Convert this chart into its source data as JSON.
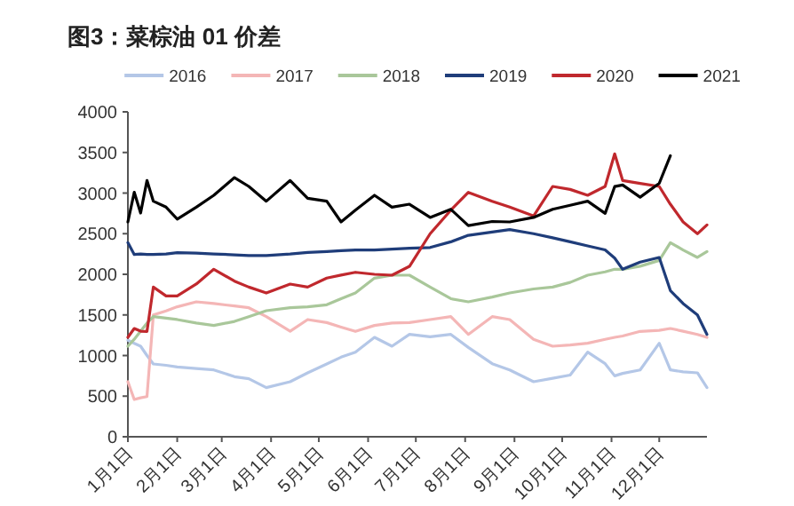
{
  "chart_data": {
    "type": "line",
    "title": "图3：菜棕油 01 价差",
    "legend": "top",
    "x": [
      "--01-01",
      "--01-05",
      "--01-09",
      "--01-13",
      "--01-17",
      "--01-25",
      "--02-01",
      "--02-13",
      "--02-24",
      "--03-09",
      "--03-18",
      "--03-29",
      "--04-13",
      "--04-24",
      "--05-06",
      "--05-15",
      "--05-24",
      "--06-05",
      "--06-16",
      "--06-27",
      "--07-10",
      "--07-23",
      "--08-03",
      "--08-18",
      "--08-29",
      "--09-13",
      "--09-25",
      "--10-06",
      "--10-17",
      "--10-28",
      "--11-03",
      "--11-08",
      "--11-19",
      "--12-01",
      "--12-08",
      "--12-16",
      "--12-25",
      "--12-31"
    ],
    "xlim": [
      "--01-01",
      "--12-31"
    ],
    "xticks": [
      {
        "value": "--01-01",
        "label": "1月1日"
      },
      {
        "value": "--02-01",
        "label": "2月1日"
      },
      {
        "value": "--03-01",
        "label": "3月1日"
      },
      {
        "value": "--04-01",
        "label": "4月1日"
      },
      {
        "value": "--05-01",
        "label": "5月1日"
      },
      {
        "value": "--06-01",
        "label": "6月1日"
      },
      {
        "value": "--07-01",
        "label": "7月1日"
      },
      {
        "value": "--08-01",
        "label": "8月1日"
      },
      {
        "value": "--09-01",
        "label": "9月1日"
      },
      {
        "value": "--10-01",
        "label": "10月1日"
      },
      {
        "value": "--11-01",
        "label": "11月1日"
      },
      {
        "value": "--12-01",
        "label": "12月1日"
      }
    ],
    "ylim": [
      0,
      4000
    ],
    "yticks": [
      0,
      500,
      1000,
      1500,
      2000,
      2500,
      3000,
      3500,
      4000
    ],
    "series": [
      {
        "name": "2016",
        "color": "#b4c7e7",
        "values": [
          1188,
          1150,
          1115,
          1000,
          896,
          880,
          860,
          840,
          823,
          740,
          714,
          605,
          678,
          787,
          896,
          980,
          1042,
          1224,
          1115,
          1260,
          1230,
          1260,
          1100,
          900,
          823,
          678,
          720,
          760,
          1042,
          900,
          750,
          780,
          823,
          1151,
          823,
          800,
          787,
          605
        ]
      },
      {
        "name": "2017",
        "color": "#f4b6b6",
        "values": [
          678,
          459,
          480,
          495,
          1500,
          1550,
          1600,
          1661,
          1640,
          1610,
          1588,
          1479,
          1300,
          1443,
          1406,
          1350,
          1297,
          1370,
          1400,
          1406,
          1443,
          1479,
          1260,
          1479,
          1443,
          1200,
          1115,
          1130,
          1151,
          1200,
          1224,
          1240,
          1297,
          1310,
          1333,
          1300,
          1260,
          1224
        ]
      },
      {
        "name": "2018",
        "color": "#a9c79a",
        "values": [
          1115,
          1200,
          1300,
          1400,
          1479,
          1460,
          1443,
          1400,
          1370,
          1420,
          1479,
          1552,
          1588,
          1600,
          1625,
          1700,
          1770,
          1953,
          1989,
          1989,
          1843,
          1700,
          1661,
          1720,
          1770,
          1820,
          1843,
          1900,
          1989,
          2030,
          2062,
          2062,
          2100,
          2171,
          2390,
          2300,
          2208,
          2280
        ]
      },
      {
        "name": "2019",
        "color": "#1f3d7a",
        "values": [
          2390,
          2244,
          2250,
          2244,
          2244,
          2250,
          2266,
          2260,
          2250,
          2240,
          2230,
          2230,
          2250,
          2270,
          2280,
          2290,
          2300,
          2300,
          2310,
          2320,
          2330,
          2400,
          2480,
          2520,
          2550,
          2500,
          2450,
          2400,
          2350,
          2300,
          2200,
          2062,
          2150,
          2207,
          1800,
          1640,
          1500,
          1260
        ]
      },
      {
        "name": "2020",
        "color": "#c0282d",
        "values": [
          1224,
          1333,
          1300,
          1297,
          1843,
          1734,
          1734,
          1880,
          2062,
          1916,
          1843,
          1770,
          1880,
          1843,
          1953,
          1990,
          2025,
          2000,
          1989,
          2098,
          2500,
          2790,
          3009,
          2900,
          2827,
          2718,
          3082,
          3045,
          2973,
          3082,
          3483,
          3155,
          3118,
          3082,
          2863,
          2645,
          2499,
          2608
        ]
      },
      {
        "name": "2021",
        "color": "#000000",
        "values": [
          2645,
          3010,
          2755,
          3155,
          2900,
          2827,
          2680,
          2827,
          2973,
          3191,
          3082,
          2900,
          3155,
          2936,
          2900,
          2645,
          2790,
          2973,
          2827,
          2863,
          2700,
          2800,
          2600,
          2650,
          2645,
          2700,
          2800,
          2850,
          2900,
          2750,
          3080,
          3100,
          2950,
          3120,
          3460,
          null,
          null,
          null
        ]
      }
    ]
  }
}
